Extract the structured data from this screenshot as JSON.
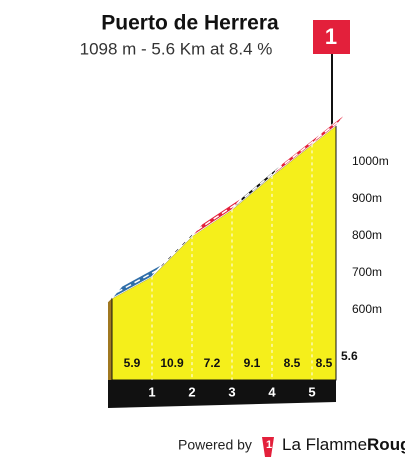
{
  "chart_data": {
    "type": "climb-profile",
    "title": "Puerto de Herrera",
    "subtitle": "1098 m - 5.6 Km at 8.4 %",
    "category": "1",
    "summit_elevation": 1098,
    "distance": 5.6,
    "x": [
      1,
      2,
      3,
      4,
      5
    ],
    "xlim": [
      0,
      5.6
    ],
    "gradients": [
      5.9,
      10.9,
      7.2,
      9.1,
      8.5,
      8.5
    ],
    "colors": [
      "#2f6ea8",
      "#111111",
      "#e3203b",
      "#111111",
      "#e3203b",
      "#e3203b"
    ],
    "ylim": [
      410,
      1140
    ],
    "yticks": [
      {
        "value": 600,
        "label": "600m"
      },
      {
        "value": 700,
        "label": "700m"
      },
      {
        "value": 800,
        "label": "800m"
      },
      {
        "value": 900,
        "label": "900m"
      },
      {
        "value": 1000,
        "label": "1000m"
      }
    ]
  },
  "footer": {
    "powered_by": "Powered by",
    "brand_1": "La Flamme",
    "brand_2": "Rouge"
  }
}
